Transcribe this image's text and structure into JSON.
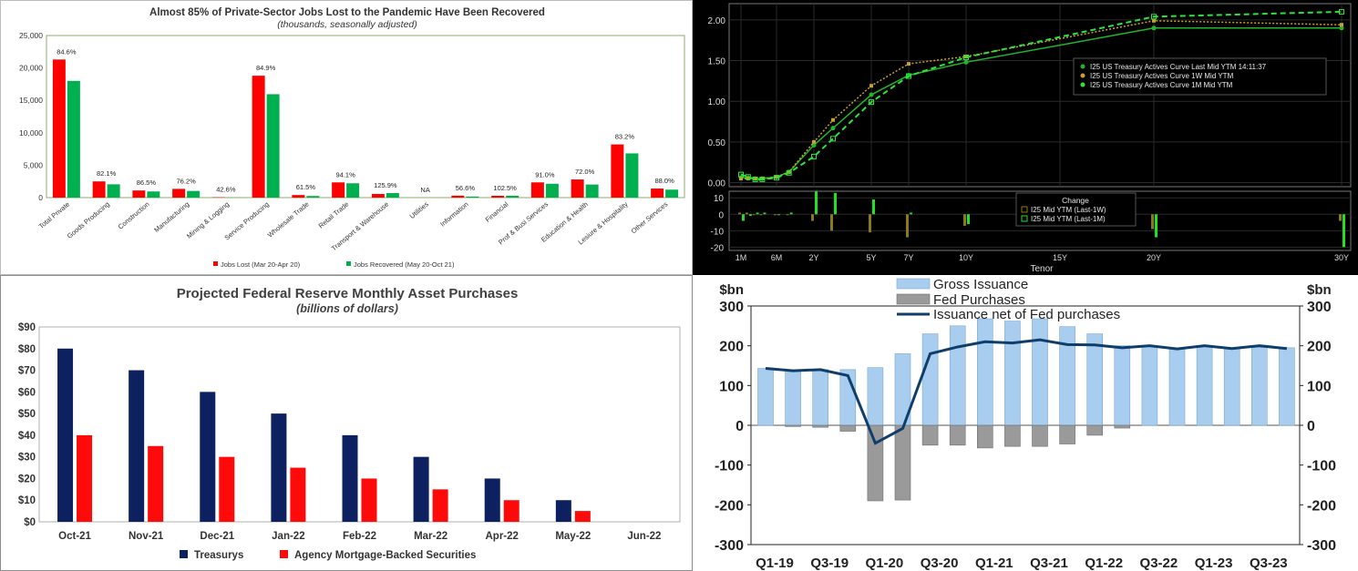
{
  "chart_data": [
    {
      "type": "bar",
      "title": "Almost 85% of Private-Sector Jobs Lost to the Pandemic Have Been Recovered",
      "subtitle": "(thousands, seasonally adjusted)",
      "categories": [
        "Total Private",
        "Goods Producing",
        "Construction",
        "Manufacturing",
        "Mining & Logging",
        "Service Producing",
        "Wholesale Trade",
        "Retail Trade",
        "Transport & Warehouse",
        "Utilities",
        "Information",
        "Financial",
        "Prof & Busi Services",
        "Education & Health",
        "Lesiure & Hospitality",
        "Other Services"
      ],
      "series": [
        {
          "name": "Jobs Lost (Mar 20-Apr 20)",
          "color": "#ff0000",
          "values": [
            21300,
            2500,
            1100,
            1350,
            60,
            18800,
            400,
            2350,
            560,
            0,
            300,
            280,
            2350,
            2800,
            8200,
            1400
          ]
        },
        {
          "name": "Jobs Recovered (May 20-Oct 21)",
          "color": "#00b050",
          "values": [
            18000,
            2050,
            950,
            1030,
            25,
            15950,
            250,
            2210,
            700,
            0,
            170,
            290,
            2140,
            2020,
            6820,
            1230
          ]
        }
      ],
      "data_labels": [
        "84.6%",
        "82.1%",
        "86.5%",
        "76.2%",
        "42.6%",
        "84.9%",
        "61.5%",
        "94.1%",
        "125.9%",
        "NA",
        "56.6%",
        "102.5%",
        "91.0%",
        "72.0%",
        "83.2%",
        "88.0%"
      ],
      "yticks": [
        "0",
        "5,000",
        "10,000",
        "15,000",
        "20,000",
        "25,000"
      ],
      "ylim": [
        0,
        25000
      ],
      "legend": "bottom"
    },
    {
      "type": "line",
      "title": "",
      "xlabel": "Tenor",
      "x": [
        "1M",
        "2M",
        "3M",
        "4M",
        "6M",
        "1Y",
        "2Y",
        "3Y",
        "5Y",
        "7Y",
        "10Y",
        "20Y",
        "30Y"
      ],
      "x_years": [
        0.083,
        0.167,
        0.25,
        0.333,
        0.5,
        1,
        2,
        3,
        5,
        7,
        10,
        20,
        30
      ],
      "xticks": [
        "1M",
        "6M",
        "2Y",
        "5Y",
        "7Y",
        "10Y",
        "15Y",
        "20Y",
        "30Y"
      ],
      "xtick_years": [
        0.083,
        0.5,
        2,
        5,
        7,
        10,
        15,
        20,
        30
      ],
      "series": [
        {
          "name": "I25 US Treasury Actives Curve Last Mid YTM 14:11:37",
          "color": "#22b42c",
          "style": "solid",
          "values": [
            0.06,
            0.06,
            0.05,
            0.05,
            0.07,
            0.13,
            0.46,
            0.67,
            1.08,
            1.32,
            1.48,
            1.9,
            1.9
          ]
        },
        {
          "name": "I25 US Treasury Actives Curve 1W Mid YTM",
          "color": "#c8a030",
          "style": "dotted",
          "values": [
            0.05,
            0.05,
            0.05,
            0.05,
            0.07,
            0.13,
            0.5,
            0.77,
            1.19,
            1.46,
            1.55,
            1.99,
            1.94
          ]
        },
        {
          "name": "I25 US Treasury Actives Curve 1M Mid YTM",
          "color": "#2ae43a",
          "style": "dashed",
          "values": [
            0.1,
            0.07,
            0.04,
            0.04,
            0.06,
            0.12,
            0.32,
            0.54,
            0.99,
            1.31,
            1.54,
            2.04,
            2.1
          ]
        }
      ],
      "yticks": [
        "0.00",
        "0.50",
        "1.00",
        "1.50",
        "2.00"
      ],
      "ylim": [
        -0.05,
        2.2
      ],
      "change_panel": {
        "title": "Change",
        "series": [
          {
            "name": "I25 Mid YTM (Last-1W)",
            "color": "#8c7a1a",
            "values": [
              1,
              1,
              0,
              0,
              0,
              0,
              -4,
              -10,
              -11,
              -14,
              -7,
              -9,
              -4
            ]
          },
          {
            "name": "I25 Mid YTM (Last-1M)",
            "color": "#22e022",
            "values": [
              -4,
              -1,
              1,
              1,
              0,
              1,
              14,
              13,
              9,
              1,
              -6,
              -14,
              -20
            ]
          }
        ],
        "yticks": [
          "10",
          "0",
          "-10",
          "-20"
        ],
        "ylim": [
          -22,
          14
        ]
      }
    },
    {
      "type": "bar",
      "title": "Projected Federal Reserve Monthly Asset Purchases",
      "subtitle": "(billions of dollars)",
      "categories": [
        "Oct-21",
        "Nov-21",
        "Dec-21",
        "Jan-22",
        "Feb-22",
        "Mar-22",
        "Apr-22",
        "May-22",
        "Jun-22"
      ],
      "series": [
        {
          "name": "Treasurys",
          "color": "#0d2060",
          "values": [
            80,
            70,
            60,
            50,
            40,
            30,
            20,
            10,
            0
          ]
        },
        {
          "name": "Agency Mortgage-Backed Securities",
          "color": "#ff0a0a",
          "values": [
            40,
            35,
            30,
            25,
            20,
            15,
            10,
            5,
            0
          ]
        }
      ],
      "yticks": [
        "$0",
        "$10",
        "$20",
        "$30",
        "$40",
        "$50",
        "$60",
        "$70",
        "$80",
        "$90"
      ],
      "ylim": [
        0,
        90
      ],
      "legend": "bottom"
    },
    {
      "type": "bar",
      "ylabel_left": "$bn",
      "ylabel_right": "$bn",
      "categories": [
        "Q1-19",
        "Q2-19",
        "Q3-19",
        "Q4-19",
        "Q1-20",
        "Q2-20",
        "Q3-20",
        "Q4-20",
        "Q1-21",
        "Q2-21",
        "Q3-21",
        "Q4-21",
        "Q1-22",
        "Q2-22",
        "Q3-22",
        "Q4-22",
        "Q1-23",
        "Q2-23",
        "Q3-23",
        "Q4-23"
      ],
      "xticks": [
        "Q1-19",
        "Q3-19",
        "Q1-20",
        "Q3-20",
        "Q1-21",
        "Q3-21",
        "Q1-22",
        "Q3-22",
        "Q1-23",
        "Q3-23"
      ],
      "series": [
        {
          "name": "Gross Issuance",
          "color": "#a9cdee",
          "values": [
            143,
            138,
            140,
            140,
            145,
            180,
            230,
            250,
            268,
            262,
            268,
            248,
            230,
            200,
            200,
            192,
            198,
            192,
            196,
            195
          ]
        },
        {
          "name": "Fed Purchases",
          "color": "#9a9a9a",
          "values": [
            0,
            -3,
            -5,
            -15,
            -190,
            -188,
            -50,
            -50,
            -57,
            -53,
            -53,
            -47,
            -25,
            -7,
            0,
            0,
            0,
            0,
            0,
            0
          ]
        },
        {
          "name": "Issuance net of Fed purchases",
          "color": "#0f3e6b",
          "values": [
            143,
            137,
            140,
            125,
            -45,
            -8,
            180,
            197,
            210,
            207,
            215,
            203,
            202,
            195,
            200,
            192,
            200,
            193,
            200,
            193
          ]
        }
      ],
      "yticks": [
        "300",
        "200",
        "100",
        "0",
        "-100",
        "-200",
        "-300"
      ],
      "ylim": [
        -300,
        300
      ],
      "legend": "top"
    }
  ]
}
